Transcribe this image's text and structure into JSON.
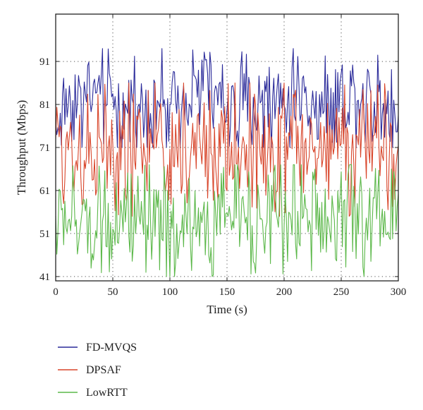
{
  "chart_data": {
    "type": "line",
    "title": "",
    "xlabel": "Time (s)",
    "ylabel": "Throughput (Mbps)",
    "xlim": [
      0,
      300
    ],
    "ylim": [
      40,
      102
    ],
    "xticks": [
      0,
      50,
      100,
      150,
      200,
      250,
      300
    ],
    "yticks": [
      41,
      51,
      61,
      71,
      81,
      91
    ],
    "grid": true,
    "grid_style": "dotted",
    "legend_position": "bottom-left, below plot",
    "series": [
      {
        "name": "FD-MVQS",
        "color": "#2a2a9a",
        "x": [
          0,
          10,
          20,
          30,
          40,
          50,
          60,
          70,
          80,
          90,
          100,
          110,
          120,
          130,
          140,
          150,
          160,
          170,
          180,
          190,
          200,
          210,
          220,
          230,
          240,
          250,
          260,
          270,
          280,
          290,
          300
        ],
        "y": [
          75,
          82,
          83,
          85,
          81,
          83,
          79,
          82,
          80,
          83,
          78,
          84,
          86,
          86,
          82,
          81,
          80,
          83,
          82,
          80,
          82,
          84,
          82,
          81,
          80,
          82,
          84,
          83,
          82,
          81,
          77
        ],
        "min": 71,
        "max": 94
      },
      {
        "name": "DPSAF",
        "color": "#d8452a",
        "x": [
          0,
          10,
          20,
          30,
          40,
          50,
          60,
          70,
          80,
          90,
          100,
          110,
          120,
          130,
          140,
          150,
          160,
          170,
          180,
          190,
          200,
          210,
          220,
          230,
          240,
          250,
          260,
          270,
          280,
          290,
          300
        ],
        "y": [
          71,
          72,
          70,
          71,
          72,
          70,
          69,
          71,
          70,
          72,
          70,
          71,
          72,
          70,
          71,
          69,
          72,
          73,
          71,
          70,
          72,
          73,
          71,
          70,
          72,
          71,
          70,
          72,
          71,
          70,
          69
        ],
        "min": 55,
        "max": 86
      },
      {
        "name": "LowRTT",
        "color": "#5cb84a",
        "x": [
          0,
          10,
          20,
          30,
          40,
          50,
          60,
          70,
          80,
          90,
          100,
          110,
          120,
          130,
          140,
          150,
          160,
          170,
          180,
          190,
          200,
          210,
          220,
          230,
          240,
          250,
          260,
          270,
          280,
          290,
          300
        ],
        "y": [
          54,
          55,
          52,
          54,
          53,
          56,
          54,
          51,
          53,
          52,
          49,
          54,
          55,
          52,
          53,
          57,
          56,
          54,
          53,
          55,
          54,
          53,
          56,
          55,
          53,
          54,
          55,
          53,
          54,
          53,
          56
        ],
        "min": 41,
        "max": 67
      }
    ]
  }
}
